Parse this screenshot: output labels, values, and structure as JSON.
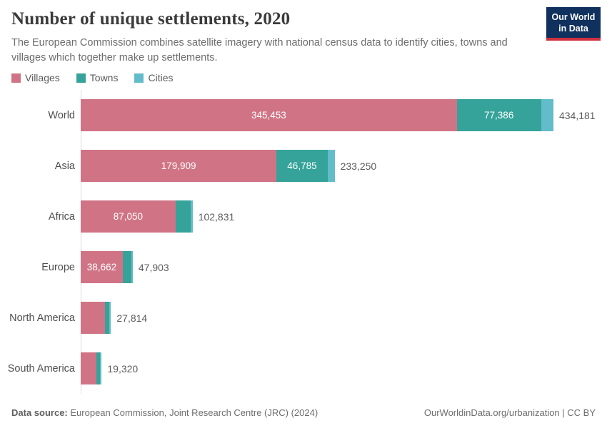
{
  "header": {
    "title": "Number of unique settlements, 2020",
    "subtitle": "The European Commission combines satellite imagery with national census data to identify cities, towns and villages which together make up settlements.",
    "logo_line1": "Our World",
    "logo_line2": "in Data",
    "logo_bg_color": "#10305d",
    "logo_accent_color": "#cf303e"
  },
  "legend": [
    {
      "label": "Villages",
      "color": "#d07485"
    },
    {
      "label": "Towns",
      "color": "#35a399"
    },
    {
      "label": "Cities",
      "color": "#62bcca"
    }
  ],
  "chart_data": {
    "type": "bar",
    "orientation": "horizontal",
    "stacked": true,
    "x_max": 434181,
    "grid": false,
    "series_order": [
      "villages",
      "towns",
      "cities"
    ],
    "series_labels": {
      "villages": "Villages",
      "towns": "Towns",
      "cities": "Cities"
    },
    "colors": {
      "villages": "#d07485",
      "towns": "#35a399",
      "cities": "#62bcca"
    },
    "rows": [
      {
        "entity": "World",
        "values": {
          "villages": 345453,
          "towns": 77386,
          "cities": 11342
        },
        "value_labels": {
          "villages": "345,453",
          "towns": "77,386"
        },
        "total": 434181,
        "total_label": "434,181"
      },
      {
        "entity": "Asia",
        "values": {
          "villages": 179909,
          "towns": 46785,
          "cities": 6556
        },
        "value_labels": {
          "villages": "179,909",
          "towns": "46,785"
        },
        "total": 233250,
        "total_label": "233,250"
      },
      {
        "entity": "Africa",
        "values": {
          "villages": 87050,
          "towns": 13800,
          "cities": 1981
        },
        "value_labels": {
          "villages": "87,050"
        },
        "total": 102831,
        "total_label": "102,831"
      },
      {
        "entity": "Europe",
        "values": {
          "villages": 38662,
          "towns": 7900,
          "cities": 1341
        },
        "value_labels": {
          "villages": "38,662"
        },
        "total": 47903,
        "total_label": "47,903"
      },
      {
        "entity": "North America",
        "values": {
          "villages": 22000,
          "towns": 4300,
          "cities": 1514
        },
        "value_labels": {},
        "total": 27814,
        "total_label": "27,814"
      },
      {
        "entity": "South America",
        "values": {
          "villages": 14100,
          "towns": 3700,
          "cities": 1520
        },
        "value_labels": {},
        "total": 19320,
        "total_label": "19,320"
      }
    ]
  },
  "footer": {
    "source_label": "Data source:",
    "source_text": "European Commission, Joint Research Centre (JRC) (2024)",
    "credit": "OurWorldinData.org/urbanization | CC BY"
  }
}
